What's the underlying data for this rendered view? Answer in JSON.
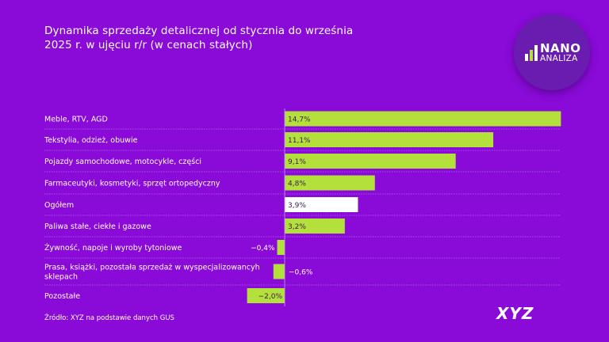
{
  "title_lines": [
    "Dynamika sprzedaży detalicznej od stycznia do września",
    "2025 r. w ujęciu r/r (w cenach stałych)"
  ],
  "logo": {
    "line1": "NANO",
    "line2": "ANALIZA"
  },
  "source": "Źródło: XYZ na podstawie danych GUS",
  "brand": "XYZ",
  "colors": {
    "background": "#8a0ad8",
    "bar": "#b4e03c",
    "highlight": "#ffffff"
  },
  "chart_data": {
    "type": "bar",
    "orientation": "horizontal",
    "title": "Dynamika sprzedaży detalicznej od stycznia do września 2025 r. w ujęciu r/r (w cenach stałych)",
    "categories": [
      [
        "Meble, RTV, AGD"
      ],
      [
        "Tekstylia, odzież, obuwie"
      ],
      [
        "Pojazdy samochodowe, motocykle, części"
      ],
      [
        "Farmaceutyki, kosmetyki, sprzęt ortopedyczny"
      ],
      [
        "Ogółem"
      ],
      [
        "Paliwa stałe, ciekłe i gazowe"
      ],
      [
        "Żywność, napoje i wyroby tytoniowe"
      ],
      [
        "Prasa, książki, pozostała sprzedaż w wyspecjalizowancyh",
        "sklepach"
      ],
      [
        "Pozostałe"
      ]
    ],
    "values": [
      14.7,
      11.1,
      9.1,
      4.8,
      3.9,
      3.2,
      -0.4,
      -0.6,
      -2.0
    ],
    "labels": [
      "14,7%",
      "11,1%",
      "9,1%",
      "4,8%",
      "3,9%",
      "3,2%",
      "−0,4%",
      "−0,6%",
      "−2,0%"
    ],
    "highlight": "Ogółem",
    "unit": "%"
  }
}
